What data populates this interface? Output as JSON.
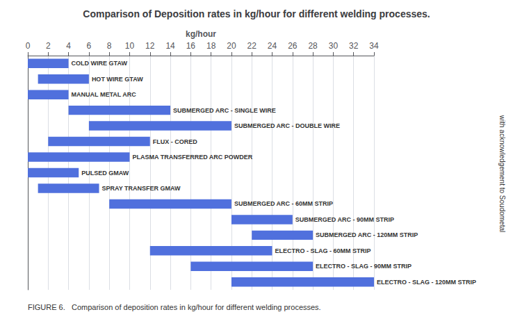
{
  "chart_data": {
    "type": "bar",
    "orientation": "horizontal",
    "title": "Comparison of Deposition rates in kg/hour for different welding processes.",
    "xlabel": "kg/hour",
    "categories": [
      "COLD WIRE GTAW",
      "HOT WIRE GTAW",
      "MANUAL METAL ARC",
      "SUBMERGED ARC - SINGLE WIRE",
      "SUBMERGED ARC - DOUBLE WIRE",
      "FLUX - CORED",
      "PLASMA TRANSFERRED ARC POWDER",
      "PULSED GMAW",
      "SPRAY TRANSFER GMAW",
      "SUBMERGED ARC - 60MM STRIP",
      "SUBMERGED ARC - 90MM STRIP",
      "SUBMERGED ARC - 120MM STRIP",
      "ELECTRO - SLAG - 60MM STRIP",
      "ELECTRO - SLAG - 90MM STRIP",
      "ELECTRO - SLAG - 120MM STRIP"
    ],
    "values": [
      [
        0,
        4
      ],
      [
        1,
        6
      ],
      [
        0,
        4
      ],
      [
        4,
        14
      ],
      [
        6,
        20
      ],
      [
        2,
        12
      ],
      [
        0,
        10
      ],
      [
        0,
        5
      ],
      [
        1,
        7
      ],
      [
        8,
        20
      ],
      [
        20,
        26
      ],
      [
        22,
        28
      ],
      [
        12,
        24
      ],
      [
        16,
        28
      ],
      [
        20,
        34
      ]
    ],
    "xlim": [
      0,
      34
    ],
    "xticks": [
      0,
      2,
      4,
      6,
      8,
      10,
      12,
      14,
      16,
      18,
      20,
      22,
      24,
      26,
      28,
      30,
      32,
      34
    ],
    "grid": true,
    "tick_labels": "x",
    "annotations": [
      "FIGURE 6.   Comparison of deposition rates in kg/hour for different welding processes.",
      "with acknowledgement to Soudometal"
    ]
  }
}
